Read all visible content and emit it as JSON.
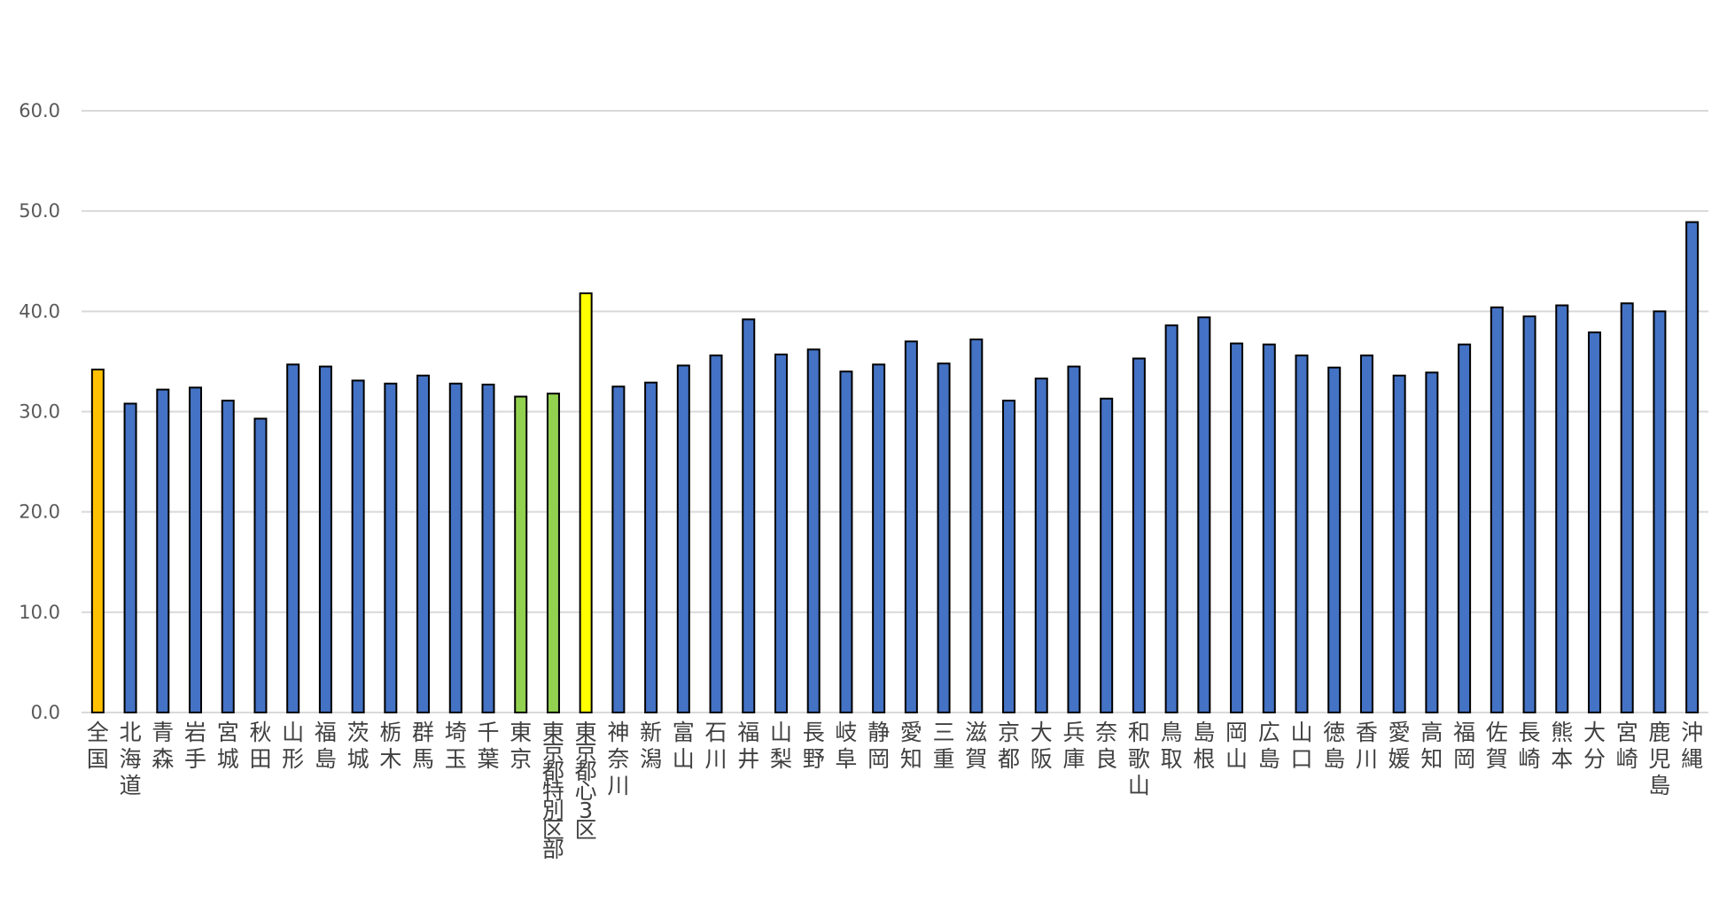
{
  "chart_data": {
    "type": "bar",
    "title": "",
    "xlabel": "",
    "ylabel": "",
    "ylim": [
      0,
      60
    ],
    "yticks": [
      "0.0",
      "10.0",
      "20.0",
      "30.0",
      "40.0",
      "50.0",
      "60.0"
    ],
    "grid": true,
    "legend": "none",
    "categories": [
      "全国",
      "北海道",
      "青森",
      "岩手",
      "宮城",
      "秋田",
      "山形",
      "福島",
      "茨城",
      "栃木",
      "群馬",
      "埼玉",
      "千葉",
      "東京",
      "東京都特別区部",
      "東京都心3区",
      "神奈川",
      "新潟",
      "富山",
      "石川",
      "福井",
      "山梨",
      "長野",
      "岐阜",
      "静岡",
      "愛知",
      "三重",
      "滋賀",
      "京都",
      "大阪",
      "兵庫",
      "奈良",
      "和歌山",
      "鳥取",
      "島根",
      "岡山",
      "広島",
      "山口",
      "徳島",
      "香川",
      "愛媛",
      "高知",
      "福岡",
      "佐賀",
      "長崎",
      "熊本",
      "大分",
      "宮崎",
      "鹿児島",
      "沖縄"
    ],
    "values": [
      34.2,
      30.8,
      32.2,
      32.4,
      31.1,
      29.3,
      34.7,
      34.5,
      33.1,
      32.8,
      33.6,
      32.8,
      32.7,
      31.5,
      31.8,
      41.8,
      32.5,
      32.9,
      34.6,
      35.6,
      39.2,
      35.7,
      36.2,
      34.0,
      34.7,
      37.0,
      34.8,
      37.2,
      31.1,
      33.3,
      34.5,
      31.3,
      35.3,
      38.6,
      39.4,
      36.8,
      36.7,
      35.6,
      34.4,
      35.6,
      33.6,
      33.9,
      36.7,
      40.4,
      39.5,
      40.6,
      37.9,
      40.8,
      40.0,
      48.9
    ],
    "colors": {
      "national": "#FFC000",
      "tokyo_group": "#92D050",
      "central3": "#FFFF00",
      "default": "#4472C4",
      "outline": "#000000"
    },
    "color_keys": [
      "national",
      "default",
      "default",
      "default",
      "default",
      "default",
      "default",
      "default",
      "default",
      "default",
      "default",
      "default",
      "default",
      "tokyo_group",
      "tokyo_group",
      "central3",
      "default",
      "default",
      "default",
      "default",
      "default",
      "default",
      "default",
      "default",
      "default",
      "default",
      "default",
      "default",
      "default",
      "default",
      "default",
      "default",
      "default",
      "default",
      "default",
      "default",
      "default",
      "default",
      "default",
      "default",
      "default",
      "default",
      "default",
      "default",
      "default",
      "default",
      "default",
      "default",
      "default",
      "default"
    ]
  }
}
